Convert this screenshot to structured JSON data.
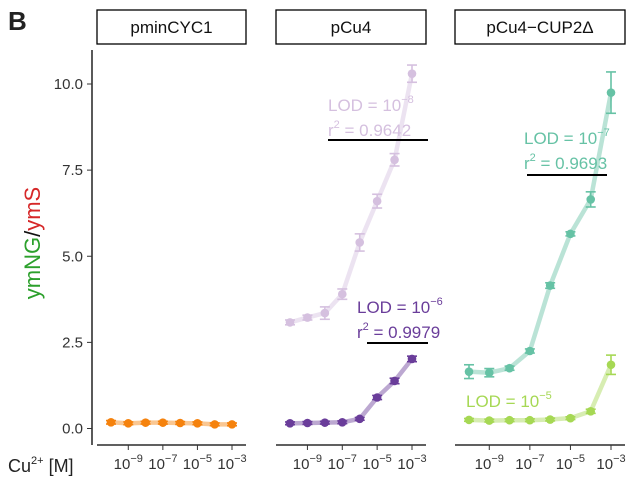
{
  "figure": {
    "panel_letter": "B",
    "x_label": "Cu",
    "x_label_sup": "2+",
    "x_label_unit": " [M]",
    "y_label_green": "ymNG",
    "y_label_slash": "/",
    "y_label_red": "ymS"
  },
  "chart_data": {
    "type": "line",
    "facets": [
      "pminCYC1",
      "pCu4",
      "pCu4−CUP2Δ"
    ],
    "x_scale": "log10",
    "x_ticks": [
      {
        "value": 1e-09,
        "base": "10",
        "exp": "−9"
      },
      {
        "value": 1e-07,
        "base": "10",
        "exp": "−7"
      },
      {
        "value": 1e-05,
        "base": "10",
        "exp": "−5"
      },
      {
        "value": 0.001,
        "base": "10",
        "exp": "−3"
      }
    ],
    "y_ticks": [
      "0.0",
      "2.5",
      "5.0",
      "7.5",
      "10.0"
    ],
    "ylim": [
      -0.25,
      10.9
    ],
    "x": [
      1e-10,
      1e-09,
      1e-08,
      1e-07,
      1e-06,
      1e-05,
      0.0001,
      0.001
    ],
    "series": [
      {
        "facet": 0,
        "color": "#F5820D",
        "values": [
          0.18,
          0.15,
          0.17,
          0.17,
          0.16,
          0.15,
          0.12,
          0.12
        ],
        "errors": [
          0.05,
          0.04,
          0.04,
          0.04,
          0.04,
          0.04,
          0.04,
          0.04
        ]
      },
      {
        "facet": 1,
        "color": "#D5C0DF",
        "values": [
          3.08,
          3.22,
          3.35,
          3.9,
          5.4,
          6.6,
          7.8,
          10.3
        ],
        "errors": [
          0.07,
          0.07,
          0.18,
          0.15,
          0.25,
          0.2,
          0.18,
          0.25
        ]
      },
      {
        "facet": 1,
        "color": "#6A3D9A",
        "values": [
          0.15,
          0.16,
          0.17,
          0.18,
          0.28,
          0.9,
          1.38,
          2.02
        ],
        "errors": [
          0.04,
          0.04,
          0.04,
          0.04,
          0.04,
          0.06,
          0.08,
          0.08
        ]
      },
      {
        "facet": 2,
        "color": "#66C2A5",
        "values": [
          1.65,
          1.62,
          1.75,
          2.25,
          4.15,
          5.65,
          6.65,
          9.75
        ],
        "errors": [
          0.2,
          0.12,
          0.06,
          0.06,
          0.08,
          0.06,
          0.22,
          0.6
        ]
      },
      {
        "facet": 2,
        "color": "#A6D854",
        "values": [
          0.25,
          0.23,
          0.24,
          0.24,
          0.26,
          0.3,
          0.5,
          1.85
        ],
        "errors": [
          0.04,
          0.04,
          0.04,
          0.04,
          0.04,
          0.04,
          0.06,
          0.28
        ]
      }
    ],
    "annotations": [
      {
        "facet": 1,
        "color": "#D5C0DF",
        "lod_text": "LOD = 10",
        "lod_exp": "−8",
        "r2_label": "r",
        "r2_sup": "2",
        "r2_value": " = 0.9642"
      },
      {
        "facet": 1,
        "color": "#6A3D9A",
        "lod_text": "LOD = 10",
        "lod_exp": "−6",
        "r2_label": "r",
        "r2_sup": "2",
        "r2_value": " = 0.9979"
      },
      {
        "facet": 2,
        "color": "#66C2A5",
        "lod_text": "LOD = 10",
        "lod_exp": "−7",
        "r2_label": "r",
        "r2_sup": "2",
        "r2_value": " = 0.9693"
      },
      {
        "facet": 2,
        "color": "#A6D854",
        "lod_text": "LOD = 10",
        "lod_exp": "−5"
      }
    ],
    "grid": false,
    "legend": "none"
  }
}
